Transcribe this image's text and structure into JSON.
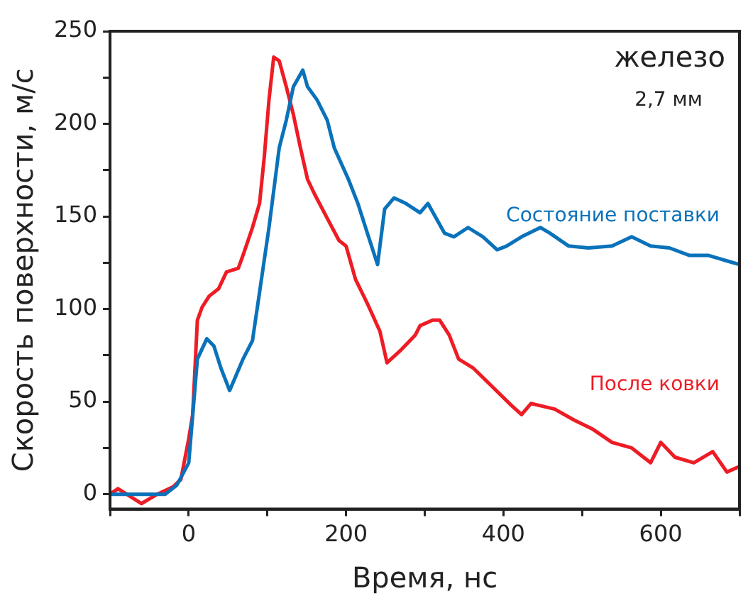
{
  "chart_data": {
    "type": "line",
    "title": "железо",
    "subtitle": "2,7 мм",
    "xlabel": "Время, нс",
    "ylabel": "Скорость поверхности, м/с",
    "xlim": [
      -100,
      700
    ],
    "ylim": [
      -8,
      250
    ],
    "xticks": [
      {
        "value": -100,
        "label": null
      },
      0,
      {
        "value": 100,
        "label": null
      },
      200,
      {
        "value": 300,
        "label": null
      },
      400,
      {
        "value": 500,
        "label": null
      },
      600,
      {
        "value": 700,
        "label": null
      }
    ],
    "yticks": [
      0,
      {
        "value": 25,
        "label": null
      },
      50,
      {
        "value": 75,
        "label": null
      },
      100,
      {
        "value": 125,
        "label": null
      },
      150,
      {
        "value": 175,
        "label": null
      },
      200,
      {
        "value": 225,
        "label": null
      },
      250
    ],
    "grid": false,
    "legend": false,
    "marker": "none",
    "line_style": "solid",
    "series": [
      {
        "name": "Состояние поставки",
        "color": "#0a72ba",
        "x": [
          -100,
          -30,
          -15,
          0,
          11,
          23,
          32,
          41,
          52,
          69,
          81,
          90,
          102,
          115,
          124,
          133,
          145,
          151,
          163,
          176,
          185,
          203,
          215,
          227,
          240,
          249,
          261,
          276,
          294,
          304,
          325,
          337,
          355,
          374,
          392,
          404,
          423,
          447,
          459,
          483,
          508,
          538,
          563,
          587,
          611,
          636,
          660,
          684,
          700
        ],
        "values": [
          0,
          0,
          5,
          17,
          73,
          84,
          80,
          68,
          56,
          73,
          83,
          109,
          144,
          187,
          202,
          220,
          229,
          220,
          213,
          202,
          187,
          170,
          157,
          141,
          124,
          154,
          160,
          157,
          152,
          157,
          141,
          139,
          144,
          139,
          132,
          134,
          139,
          144,
          141,
          134,
          133,
          134,
          139,
          134,
          133,
          129,
          129,
          126,
          124
        ]
      },
      {
        "name": "После ковки",
        "color": "#ee1c25",
        "x": [
          -100,
          -90,
          -60,
          -40,
          -20,
          -10,
          0,
          5,
          11,
          17,
          26,
          38,
          48,
          63,
          69,
          81,
          90,
          96,
          102,
          108,
          115,
          124,
          133,
          142,
          151,
          160,
          176,
          191,
          200,
          212,
          227,
          243,
          252,
          270,
          288,
          294,
          310,
          319,
          331,
          343,
          362,
          386,
          410,
          423,
          435,
          465,
          490,
          514,
          538,
          563,
          587,
          600,
          618,
          642,
          666,
          684,
          700
        ],
        "values": [
          0,
          3,
          -5,
          0,
          4,
          8,
          30,
          43,
          94,
          101,
          107,
          111,
          120,
          122,
          129,
          144,
          157,
          182,
          213,
          236,
          234,
          220,
          205,
          187,
          170,
          162,
          149,
          137,
          134,
          116,
          103,
          88,
          71,
          78,
          86,
          91,
          94,
          94,
          86,
          73,
          68,
          58,
          48,
          43,
          49,
          46,
          40,
          35,
          28,
          25,
          17,
          28,
          20,
          17,
          23,
          12,
          15
        ]
      }
    ]
  }
}
